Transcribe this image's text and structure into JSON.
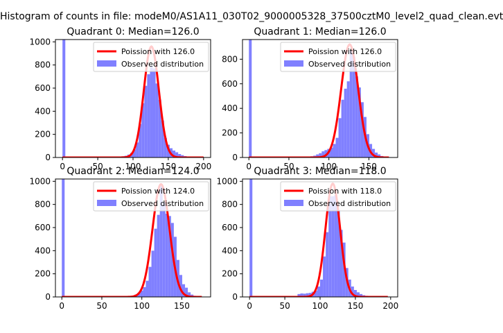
{
  "suptitle": "Histogram of counts in file: modeM0/AS1A11_030T02_9000005328_37500cztM0_level2_quad_clean.evt",
  "colors": {
    "fit": "#ff0000",
    "hist": "#8080ff",
    "axes": "#000000"
  },
  "chart_data": [
    {
      "type": "bar",
      "title": "Quadrant 0: Median=126.0",
      "xlim": [
        -10,
        210
      ],
      "ylim": [
        0,
        1020
      ],
      "xticks": [
        0,
        50,
        100,
        150,
        200
      ],
      "yticks": [
        0,
        200,
        400,
        600,
        800,
        1000
      ],
      "bin_width": 4,
      "bins": [
        [
          0,
          1020
        ],
        [
          4,
          5
        ],
        [
          8,
          5
        ],
        [
          12,
          5
        ],
        [
          16,
          5
        ],
        [
          20,
          5
        ],
        [
          24,
          5
        ],
        [
          28,
          5
        ],
        [
          32,
          5
        ],
        [
          36,
          5
        ],
        [
          40,
          5
        ],
        [
          44,
          5
        ],
        [
          48,
          5
        ],
        [
          52,
          5
        ],
        [
          56,
          5
        ],
        [
          60,
          5
        ],
        [
          64,
          5
        ],
        [
          68,
          5
        ],
        [
          72,
          5
        ],
        [
          76,
          5
        ],
        [
          80,
          6
        ],
        [
          84,
          10
        ],
        [
          88,
          15
        ],
        [
          92,
          25
        ],
        [
          96,
          40
        ],
        [
          100,
          70
        ],
        [
          104,
          130
        ],
        [
          108,
          290
        ],
        [
          112,
          470
        ],
        [
          116,
          620
        ],
        [
          120,
          720
        ],
        [
          124,
          790
        ],
        [
          128,
          770
        ],
        [
          132,
          640
        ],
        [
          136,
          500
        ],
        [
          140,
          320
        ],
        [
          144,
          170
        ],
        [
          148,
          110
        ],
        [
          152,
          80
        ],
        [
          156,
          60
        ],
        [
          160,
          45
        ],
        [
          164,
          30
        ],
        [
          168,
          20
        ],
        [
          172,
          12
        ],
        [
          176,
          8
        ],
        [
          180,
          5
        ],
        [
          184,
          5
        ],
        [
          188,
          5
        ],
        [
          192,
          5
        ],
        [
          196,
          5
        ]
      ],
      "series": [
        {
          "name": "Poission with 126.0",
          "kind": "poisson",
          "lambda": 126.0,
          "peak": 960,
          "x": [
            0,
            200
          ]
        },
        {
          "name": "Observed distribution",
          "kind": "hist"
        }
      ],
      "legend": "upper-right"
    },
    {
      "type": "bar",
      "title": "Quadrant 1: Median=126.0",
      "xlim": [
        -8,
        186
      ],
      "ylim": [
        0,
        960
      ],
      "xticks": [
        0,
        50,
        100,
        150
      ],
      "yticks": [
        0,
        200,
        400,
        600,
        800
      ],
      "bin_width": 3.5,
      "bins": [
        [
          0,
          960
        ],
        [
          3.5,
          3
        ],
        [
          7,
          3
        ],
        [
          10.5,
          3
        ],
        [
          14,
          3
        ],
        [
          17.5,
          3
        ],
        [
          21,
          3
        ],
        [
          24.5,
          3
        ],
        [
          28,
          3
        ],
        [
          31.5,
          3
        ],
        [
          35,
          3
        ],
        [
          38.5,
          3
        ],
        [
          42,
          3
        ],
        [
          45.5,
          3
        ],
        [
          49,
          3
        ],
        [
          52.5,
          3
        ],
        [
          56,
          3
        ],
        [
          59.5,
          3
        ],
        [
          63,
          3
        ],
        [
          66.5,
          3
        ],
        [
          70,
          3
        ],
        [
          73.5,
          5
        ],
        [
          77,
          10
        ],
        [
          80.5,
          15
        ],
        [
          84,
          25
        ],
        [
          87.5,
          35
        ],
        [
          91,
          50
        ],
        [
          94.5,
          60
        ],
        [
          98,
          70
        ],
        [
          101.5,
          80
        ],
        [
          105,
          110
        ],
        [
          108.5,
          160
        ],
        [
          112,
          320
        ],
        [
          115.5,
          470
        ],
        [
          119,
          560
        ],
        [
          122.5,
          620
        ],
        [
          126,
          870
        ],
        [
          129.5,
          820
        ],
        [
          133,
          660
        ],
        [
          136.5,
          570
        ],
        [
          140,
          450
        ],
        [
          143.5,
          330
        ],
        [
          147,
          190
        ],
        [
          150.5,
          110
        ],
        [
          154,
          70
        ],
        [
          157.5,
          40
        ],
        [
          161,
          25
        ],
        [
          164.5,
          12
        ],
        [
          168,
          6
        ],
        [
          171.5,
          4
        ],
        [
          175,
          3
        ]
      ],
      "series": [
        {
          "name": "Poission with 126.0",
          "kind": "poisson",
          "lambda": 126.0,
          "peak": 920,
          "x": [
            0,
            175
          ]
        },
        {
          "name": "Observed distribution",
          "kind": "hist"
        }
      ],
      "legend": "upper-right"
    },
    {
      "type": "bar",
      "title": "Quadrant 2: Median=124.0",
      "xlim": [
        -8,
        186
      ],
      "ylim": [
        0,
        1020
      ],
      "xticks": [
        0,
        50,
        100,
        150
      ],
      "yticks": [
        0,
        200,
        400,
        600,
        800,
        1000
      ],
      "bin_width": 3.5,
      "bins": [
        [
          0,
          1020
        ],
        [
          3.5,
          3
        ],
        [
          7,
          3
        ],
        [
          10.5,
          3
        ],
        [
          14,
          3
        ],
        [
          17.5,
          3
        ],
        [
          21,
          3
        ],
        [
          24.5,
          3
        ],
        [
          28,
          3
        ],
        [
          31.5,
          3
        ],
        [
          35,
          3
        ],
        [
          38.5,
          3
        ],
        [
          42,
          3
        ],
        [
          45.5,
          3
        ],
        [
          49,
          3
        ],
        [
          52.5,
          3
        ],
        [
          56,
          3
        ],
        [
          59.5,
          3
        ],
        [
          63,
          3
        ],
        [
          66.5,
          3
        ],
        [
          70,
          3
        ],
        [
          73.5,
          3
        ],
        [
          77,
          4
        ],
        [
          80.5,
          6
        ],
        [
          84,
          8
        ],
        [
          87.5,
          12
        ],
        [
          91,
          20
        ],
        [
          94.5,
          35
        ],
        [
          98,
          55
        ],
        [
          101.5,
          85
        ],
        [
          105,
          140
        ],
        [
          108.5,
          260
        ],
        [
          112,
          400
        ],
        [
          115.5,
          590
        ],
        [
          119,
          710
        ],
        [
          122.5,
          960
        ],
        [
          126,
          820
        ],
        [
          129.5,
          720
        ],
        [
          133,
          700
        ],
        [
          136.5,
          640
        ],
        [
          140,
          520
        ],
        [
          143.5,
          320
        ],
        [
          147,
          190
        ],
        [
          150.5,
          110
        ],
        [
          154,
          80
        ],
        [
          157.5,
          40
        ],
        [
          161,
          20
        ],
        [
          164.5,
          10
        ],
        [
          168,
          5
        ],
        [
          171.5,
          3
        ],
        [
          175,
          3
        ]
      ],
      "series": [
        {
          "name": "Poission with 124.0",
          "kind": "poisson",
          "lambda": 124.0,
          "peak": 975,
          "x": [
            0,
            175
          ]
        },
        {
          "name": "Observed distribution",
          "kind": "hist"
        }
      ],
      "legend": "upper-right"
    },
    {
      "type": "bar",
      "title": "Quadrant 3: Median=118.0",
      "xlim": [
        -10,
        210
      ],
      "ylim": [
        0,
        1020
      ],
      "xticks": [
        0,
        50,
        100,
        150,
        200
      ],
      "yticks": [
        0,
        200,
        400,
        600,
        800,
        1000
      ],
      "bin_width": 4,
      "bins": [
        [
          0,
          1020
        ],
        [
          4,
          5
        ],
        [
          8,
          5
        ],
        [
          12,
          5
        ],
        [
          16,
          5
        ],
        [
          20,
          5
        ],
        [
          24,
          5
        ],
        [
          28,
          5
        ],
        [
          32,
          5
        ],
        [
          36,
          5
        ],
        [
          40,
          5
        ],
        [
          44,
          5
        ],
        [
          48,
          5
        ],
        [
          52,
          5
        ],
        [
          56,
          5
        ],
        [
          60,
          5
        ],
        [
          64,
          5
        ],
        [
          68,
          25
        ],
        [
          72,
          30
        ],
        [
          76,
          28
        ],
        [
          80,
          32
        ],
        [
          84,
          35
        ],
        [
          88,
          45
        ],
        [
          92,
          55
        ],
        [
          96,
          90
        ],
        [
          100,
          150
        ],
        [
          104,
          350
        ],
        [
          108,
          560
        ],
        [
          112,
          870
        ],
        [
          116,
          870
        ],
        [
          120,
          880
        ],
        [
          124,
          750
        ],
        [
          128,
          580
        ],
        [
          132,
          470
        ],
        [
          136,
          250
        ],
        [
          140,
          150
        ],
        [
          144,
          90
        ],
        [
          148,
          60
        ],
        [
          152,
          40
        ],
        [
          156,
          25
        ],
        [
          160,
          15
        ],
        [
          164,
          10
        ],
        [
          168,
          6
        ],
        [
          172,
          5
        ],
        [
          176,
          5
        ],
        [
          180,
          5
        ],
        [
          184,
          5
        ],
        [
          188,
          5
        ],
        [
          192,
          5
        ]
      ],
      "series": [
        {
          "name": "Poission with 118.0",
          "kind": "poisson",
          "lambda": 118.0,
          "peak": 980,
          "x": [
            0,
            196
          ]
        },
        {
          "name": "Observed distribution",
          "kind": "hist"
        }
      ],
      "legend": "upper-right"
    }
  ]
}
